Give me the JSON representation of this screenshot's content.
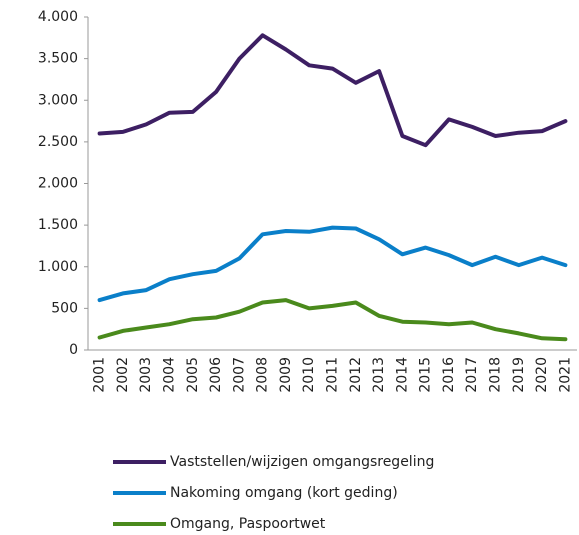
{
  "chart_data": {
    "type": "line",
    "categories": [
      "2001",
      "2002",
      "2003",
      "2004",
      "2005",
      "2006",
      "2007",
      "2008",
      "2009",
      "2010",
      "2011",
      "2012",
      "2013",
      "2014",
      "2015",
      "2016",
      "2017",
      "2018",
      "2019",
      "2020",
      "2021"
    ],
    "series": [
      {
        "name": "Vaststellen/wijzigen omgangsregeling",
        "color": "#3d1f63",
        "values": [
          2600,
          2620,
          2710,
          2850,
          2860,
          3100,
          3500,
          3780,
          3610,
          3420,
          3380,
          3210,
          3350,
          2570,
          2460,
          2770,
          2680,
          2570,
          2610,
          2630,
          2750
        ]
      },
      {
        "name": "Nakoming omgang (kort geding)",
        "color": "#0a7fc9",
        "values": [
          600,
          680,
          720,
          850,
          910,
          950,
          1100,
          1390,
          1430,
          1420,
          1470,
          1460,
          1330,
          1150,
          1230,
          1140,
          1020,
          1120,
          1020,
          1110,
          1020
        ]
      },
      {
        "name": "Omgang, Paspoortwet",
        "color": "#4a8a1c",
        "values": [
          150,
          230,
          270,
          310,
          370,
          390,
          460,
          570,
          600,
          500,
          530,
          570,
          410,
          340,
          330,
          310,
          330,
          250,
          200,
          140,
          130
        ]
      }
    ],
    "ylim": [
      0,
      4000
    ],
    "yticks": [
      0,
      500,
      {
        "value": 1000,
        "label": "1.000"
      },
      {
        "value": 1500,
        "label": "1.500"
      },
      {
        "value": 2000,
        "label": "2.000"
      },
      {
        "value": 2500,
        "label": "2.500"
      },
      {
        "value": 3000,
        "label": "3.000"
      },
      {
        "value": 3500,
        "label": "3.500"
      },
      {
        "value": 4000,
        "label": "4.000"
      }
    ],
    "grid": false
  }
}
